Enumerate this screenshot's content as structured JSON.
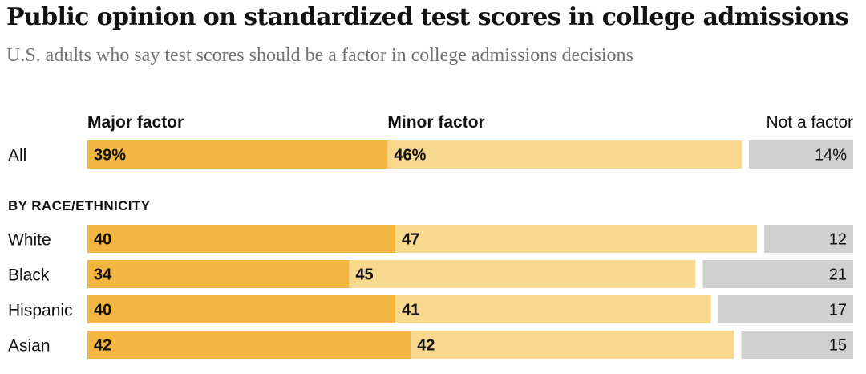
{
  "title": "Public opinion on standardized test scores in college admissions",
  "subtitle": "U.S. adults who say test scores should be a factor in college admissions decisions",
  "colors": {
    "major": "#F3B641",
    "minor": "#F8D88F",
    "not": "#D0D0D0",
    "text": "#121212",
    "subtitle": "#727272"
  },
  "chart_data": {
    "type": "bar",
    "stacked": true,
    "orientation": "horizontal",
    "legend": [
      "Major factor",
      "Minor factor",
      "Not a factor"
    ],
    "section_label": "BY RACE/ETHNICITY",
    "rows": [
      {
        "label": "All",
        "values": [
          39,
          46,
          14
        ],
        "display": [
          "39%",
          "46%",
          "14%"
        ],
        "group": "overall"
      },
      {
        "label": "White",
        "values": [
          40,
          47,
          12
        ],
        "display": [
          "40",
          "47",
          "12"
        ],
        "group": "race"
      },
      {
        "label": "Black",
        "values": [
          34,
          45,
          21
        ],
        "display": [
          "34",
          "45",
          "21"
        ],
        "group": "race"
      },
      {
        "label": "Hispanic",
        "values": [
          40,
          41,
          17
        ],
        "display": [
          "40",
          "41",
          "17"
        ],
        "group": "race"
      },
      {
        "label": "Asian",
        "values": [
          42,
          42,
          15
        ],
        "display": [
          "42",
          "42",
          "15"
        ],
        "group": "race"
      }
    ],
    "xlim": [
      0,
      100
    ]
  }
}
